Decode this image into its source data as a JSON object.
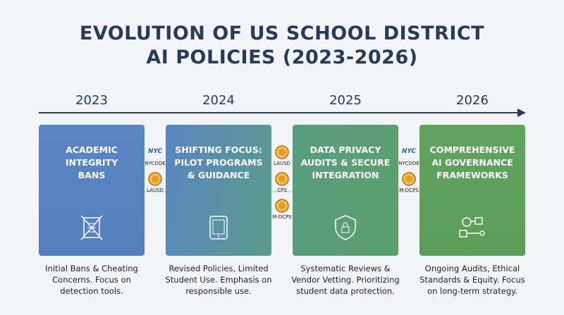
{
  "title": [
    "EVOLUTION OF US SCHOOL DISTRICT",
    "AI POLICIES (2023-2026)"
  ],
  "stages": [
    {
      "year": "2023",
      "title": [
        "ACADEMIC",
        "INTEGRITY",
        "BANS"
      ],
      "description": [
        "Initial Bans & Cheating",
        "Concerns. Focus on",
        "detection tools."
      ]
    },
    {
      "year": "2024",
      "title": [
        "SHIFTING FOCUS:",
        "PILOT PROGRAMS",
        "& GUIDANCE"
      ],
      "description": [
        "Revised Policies, Limited",
        "Student Use. Emphasis on",
        "responsible use."
      ]
    },
    {
      "year": "2025",
      "title": [
        "DATA PRIVACY",
        "AUDITS & SECURE",
        "INTEGRATION"
      ],
      "description": [
        "Systematic Reviews &",
        "Vendor Vetting. Prioritizing",
        "student data protection."
      ]
    },
    {
      "year": "2026",
      "title": [
        "COMPREHENSIVE",
        "AI GOVERNANCE",
        "FRAMEWORKS"
      ],
      "description": [
        "Ongoing Audits, Ethical",
        "Standards & Equity. Focus",
        "on long-term strategy."
      ]
    }
  ],
  "connectors": [
    [
      {
        "logo": "NYC",
        "label": "NYCDOE"
      },
      {
        "label": "LAUSD"
      }
    ],
    [
      {
        "label": "LAUSD"
      },
      {
        "label": "CPS"
      },
      {
        "label": "M-DCPS"
      }
    ],
    [
      {
        "logo": "NYC",
        "label": "NYCDOE"
      },
      {
        "label": "M-DCPS"
      }
    ]
  ]
}
